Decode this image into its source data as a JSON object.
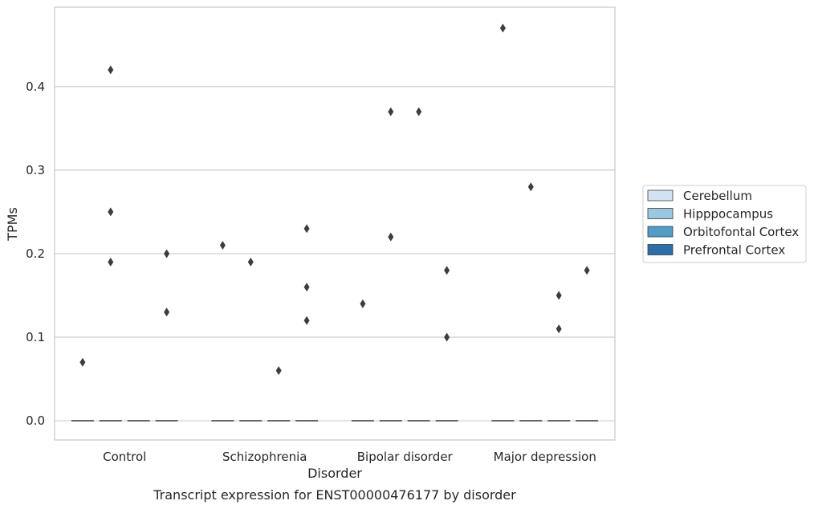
{
  "chart_data": {
    "type": "box",
    "caption": "Transcript expression for ENST00000476177 by disorder",
    "xlabel": "Disorder",
    "ylabel": "TPMs",
    "ylim": [
      -0.023,
      0.495
    ],
    "yticks": [
      0.0,
      0.1,
      0.2,
      0.3,
      0.4
    ],
    "ytick_labels": [
      "0.0",
      "0.1",
      "0.2",
      "0.3",
      "0.4"
    ],
    "grid": true,
    "legend_position": "right",
    "categories": [
      "Control",
      "Schizophrenia",
      "Bipolar disorder",
      "Major depression"
    ],
    "series": [
      {
        "name": "Cerebellum",
        "color": "#d1e2f2",
        "median": [
          0,
          0,
          0,
          0
        ],
        "outliers": [
          [
            0.07
          ],
          [
            0.21
          ],
          [
            0.14
          ],
          [
            0.47
          ]
        ]
      },
      {
        "name": "Hipppocampus",
        "color": "#9ac8e0",
        "median": [
          0,
          0,
          0,
          0
        ],
        "outliers": [
          [
            0.42,
            0.25,
            0.19
          ],
          [
            0.19
          ],
          [
            0.37,
            0.22
          ],
          [
            0.28
          ]
        ]
      },
      {
        "name": "Orbitofontal Cortex",
        "color": "#519bc9",
        "median": [
          0,
          0,
          0,
          0
        ],
        "outliers": [
          [],
          [
            0.06
          ],
          [
            0.37
          ],
          [
            0.15,
            0.11
          ]
        ]
      },
      {
        "name": "Prefrontal Cortex",
        "color": "#2a6fab",
        "median": [
          0,
          0,
          0,
          0
        ],
        "outliers": [
          [
            0.2,
            0.13
          ],
          [
            0.23,
            0.16,
            0.12
          ],
          [
            0.18,
            0.1
          ],
          [
            0.18
          ]
        ]
      }
    ]
  }
}
